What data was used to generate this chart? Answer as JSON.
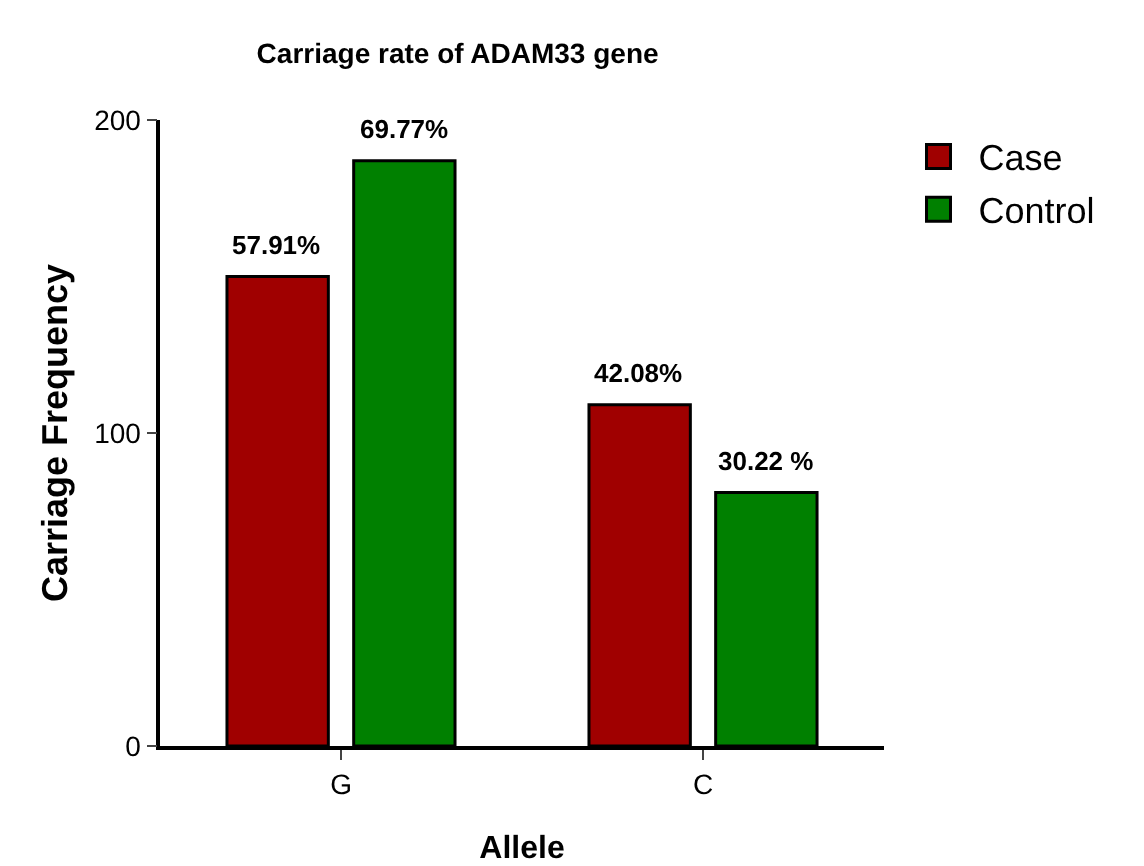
{
  "chart_data": {
    "type": "bar",
    "title": "Carriage rate of ADAM33 gene",
    "xlabel": "Allele",
    "ylabel": "Carriage Frequency",
    "categories": [
      "G",
      "C"
    ],
    "series": [
      {
        "name": "Case",
        "color": "#a00000",
        "values": [
          150,
          109
        ]
      },
      {
        "name": "Control",
        "color": "#008000",
        "values": [
          187,
          81
        ]
      }
    ],
    "annotations": [
      "57.91%",
      "69.77%",
      "42.08%",
      "30.22 %"
    ],
    "ylim": [
      0,
      200
    ],
    "yticks": [
      0,
      100,
      200
    ],
    "grid": false,
    "legend": "top right"
  }
}
